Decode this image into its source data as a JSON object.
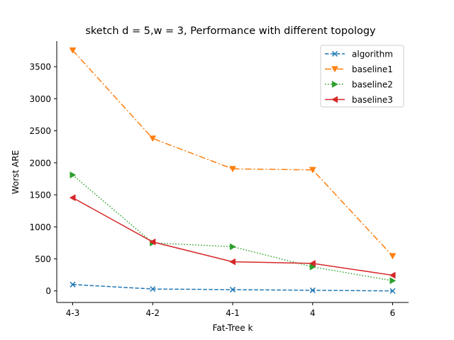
{
  "chart_data": {
    "type": "line",
    "title": "sketch d = 5,w = 3, Performance with different topology",
    "xlabel": "Fat-Tree k",
    "ylabel": "Worst ARE",
    "categories": [
      "4-3",
      "4-2",
      "4-1",
      "4",
      "6"
    ],
    "ylim": [
      -180,
      3900
    ],
    "yticks": [
      0,
      500,
      1000,
      1500,
      2000,
      2500,
      3000,
      3500
    ],
    "grid": false,
    "legend_position": "top-right",
    "series": [
      {
        "name": "algorithm",
        "values": [
          100,
          30,
          20,
          10,
          0
        ],
        "color": "#1f77b4",
        "dash": "dashed",
        "marker": "x"
      },
      {
        "name": "baseline1",
        "values": [
          3755,
          2380,
          1905,
          1890,
          545
        ],
        "color": "#ff7f0e",
        "dash": "dashdot",
        "marker": "triangle-down"
      },
      {
        "name": "baseline2",
        "values": [
          1810,
          750,
          690,
          375,
          160
        ],
        "color": "#2ca02c",
        "dash": "dotted",
        "marker": "triangle-right"
      },
      {
        "name": "baseline3",
        "values": [
          1455,
          765,
          455,
          430,
          245
        ],
        "color": "#d62728",
        "dash": "solid",
        "marker": "triangle-left"
      }
    ]
  }
}
